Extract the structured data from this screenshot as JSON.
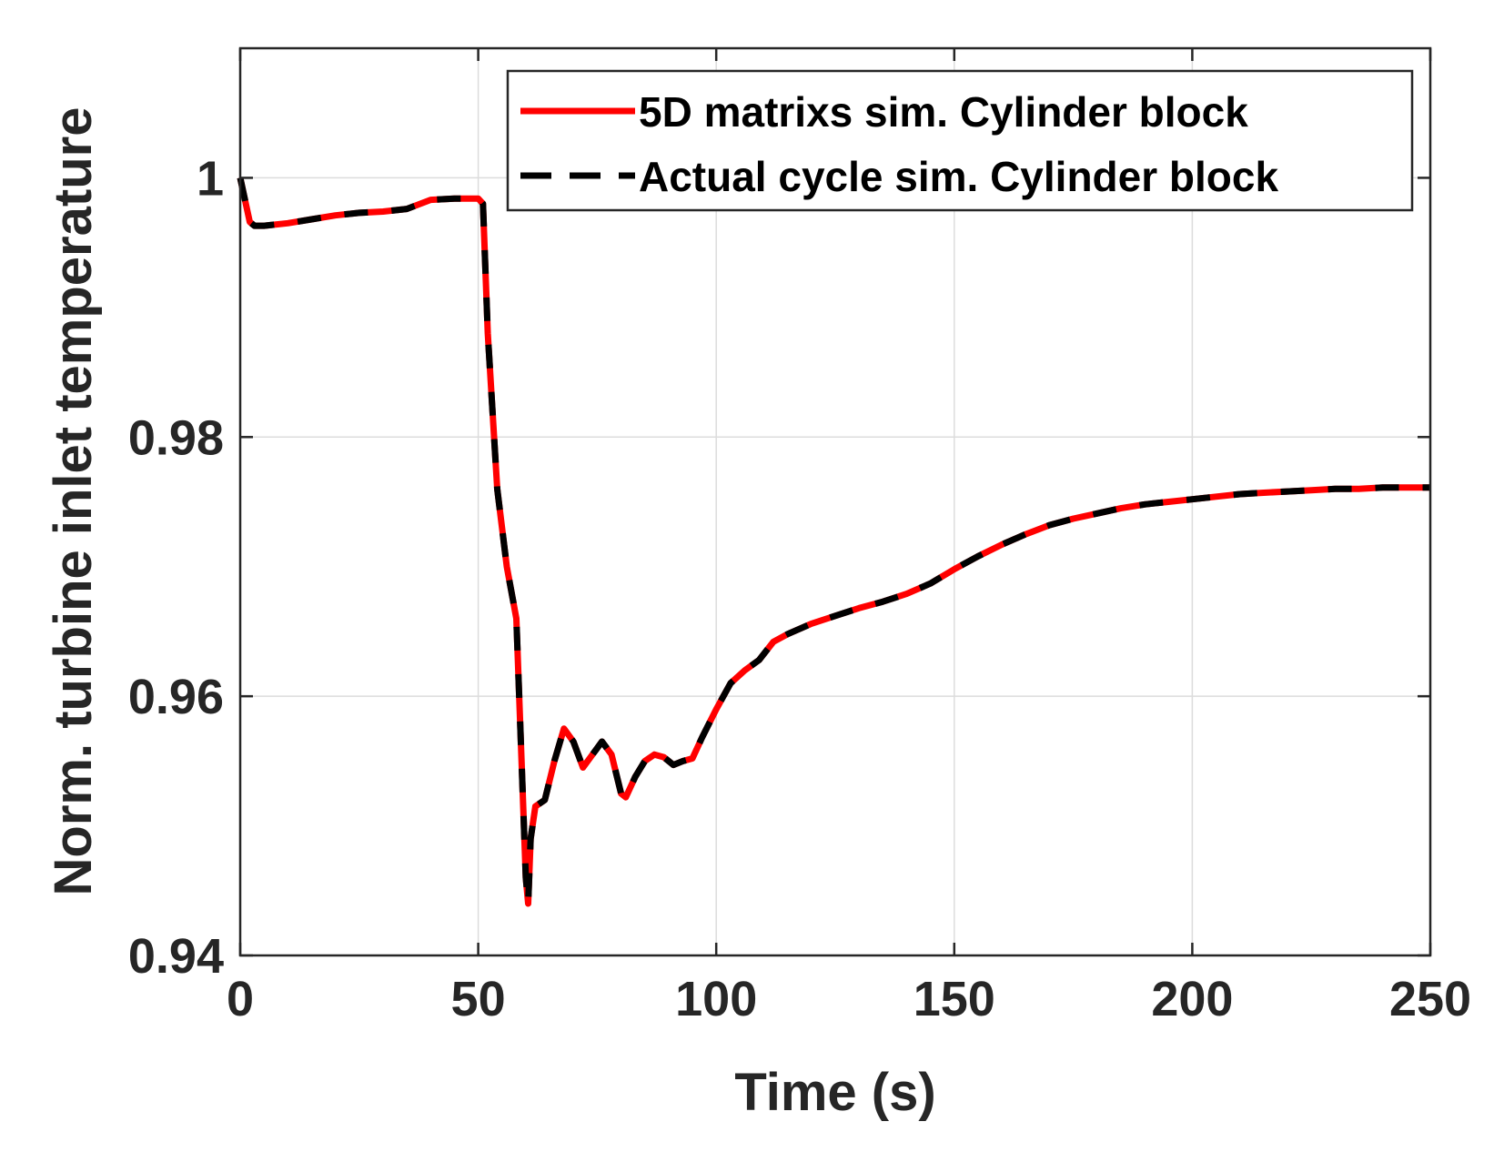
{
  "chart_data": {
    "type": "line",
    "xlabel": "Time (s)",
    "ylabel": "Norm. turbine inlet temperature",
    "xlim": [
      0,
      250
    ],
    "ylim": [
      0.94,
      1.01
    ],
    "xticks": [
      0,
      50,
      100,
      150,
      200,
      250
    ],
    "xtick_labels": [
      "0",
      "50",
      "100",
      "150",
      "200",
      "250"
    ],
    "yticks": [
      0.94,
      0.96,
      0.98,
      1.0
    ],
    "ytick_labels": [
      "0.94",
      "0.96",
      "0.98",
      "1"
    ],
    "grid": true,
    "legend_position": "top-right",
    "series": [
      {
        "name": "5D matrixs sim. Cylinder block",
        "color": "#ff0000",
        "style": "solid",
        "x": [
          0,
          2,
          3,
          5,
          10,
          15,
          20,
          25,
          30,
          35,
          40,
          45,
          48,
          50,
          51,
          52,
          54,
          56,
          58,
          59,
          60,
          60.5,
          61,
          62,
          64,
          66,
          68,
          70,
          72,
          74,
          76,
          78,
          80,
          81,
          83,
          85,
          87,
          89,
          91,
          93,
          95,
          97,
          100,
          103,
          106,
          109,
          112,
          115,
          120,
          125,
          130,
          135,
          140,
          145,
          150,
          155,
          160,
          165,
          170,
          175,
          180,
          185,
          190,
          195,
          200,
          205,
          210,
          215,
          220,
          225,
          230,
          235,
          240,
          245,
          250
        ],
        "values": [
          1.0,
          0.9966,
          0.9963,
          0.9963,
          0.9965,
          0.9968,
          0.9971,
          0.9973,
          0.9974,
          0.9976,
          0.9983,
          0.9984,
          0.9984,
          0.9984,
          0.998,
          0.988,
          0.976,
          0.97,
          0.966,
          0.956,
          0.946,
          0.944,
          0.949,
          0.9515,
          0.952,
          0.955,
          0.9575,
          0.9565,
          0.9545,
          0.9555,
          0.9565,
          0.9555,
          0.9525,
          0.9522,
          0.9538,
          0.955,
          0.9555,
          0.9553,
          0.9547,
          0.955,
          0.9552,
          0.9568,
          0.959,
          0.961,
          0.962,
          0.9628,
          0.9642,
          0.9648,
          0.9656,
          0.9662,
          0.9668,
          0.9673,
          0.9679,
          0.9687,
          0.9698,
          0.9708,
          0.9717,
          0.9725,
          0.9732,
          0.9737,
          0.9741,
          0.9745,
          0.9748,
          0.975,
          0.9752,
          0.9754,
          0.9756,
          0.9757,
          0.9758,
          0.9759,
          0.976,
          0.976,
          0.9761,
          0.9761,
          0.9761
        ]
      },
      {
        "name": "Actual cycle sim. Cylinder block",
        "color": "#000000",
        "style": "dashed",
        "x": [
          0,
          2,
          3,
          5,
          10,
          15,
          20,
          25,
          30,
          35,
          40,
          45,
          48,
          50,
          51,
          52,
          54,
          56,
          58,
          59,
          60,
          60.5,
          61,
          62,
          64,
          66,
          68,
          70,
          72,
          74,
          76,
          78,
          80,
          81,
          83,
          85,
          87,
          89,
          91,
          93,
          95,
          97,
          100,
          103,
          106,
          109,
          112,
          115,
          120,
          125,
          130,
          135,
          140,
          145,
          150,
          155,
          160,
          165,
          170,
          175,
          180,
          185,
          190,
          195,
          200,
          205,
          210,
          215,
          220,
          225,
          230,
          235,
          240,
          245,
          250
        ],
        "values": [
          1.0,
          0.9966,
          0.9963,
          0.9963,
          0.9965,
          0.9968,
          0.9971,
          0.9973,
          0.9974,
          0.9976,
          0.9983,
          0.9984,
          0.9984,
          0.9984,
          0.998,
          0.988,
          0.976,
          0.97,
          0.966,
          0.956,
          0.946,
          0.944,
          0.949,
          0.9515,
          0.952,
          0.955,
          0.9575,
          0.9565,
          0.9545,
          0.9555,
          0.9565,
          0.9555,
          0.9525,
          0.9522,
          0.9538,
          0.955,
          0.9555,
          0.9553,
          0.9547,
          0.955,
          0.9552,
          0.9568,
          0.959,
          0.961,
          0.962,
          0.9628,
          0.9642,
          0.9648,
          0.9656,
          0.9662,
          0.9668,
          0.9673,
          0.9679,
          0.9687,
          0.9698,
          0.9708,
          0.9717,
          0.9725,
          0.9732,
          0.9737,
          0.9741,
          0.9745,
          0.9748,
          0.975,
          0.9752,
          0.9754,
          0.9756,
          0.9757,
          0.9758,
          0.9759,
          0.976,
          0.976,
          0.9761,
          0.9761,
          0.9761
        ]
      }
    ]
  }
}
